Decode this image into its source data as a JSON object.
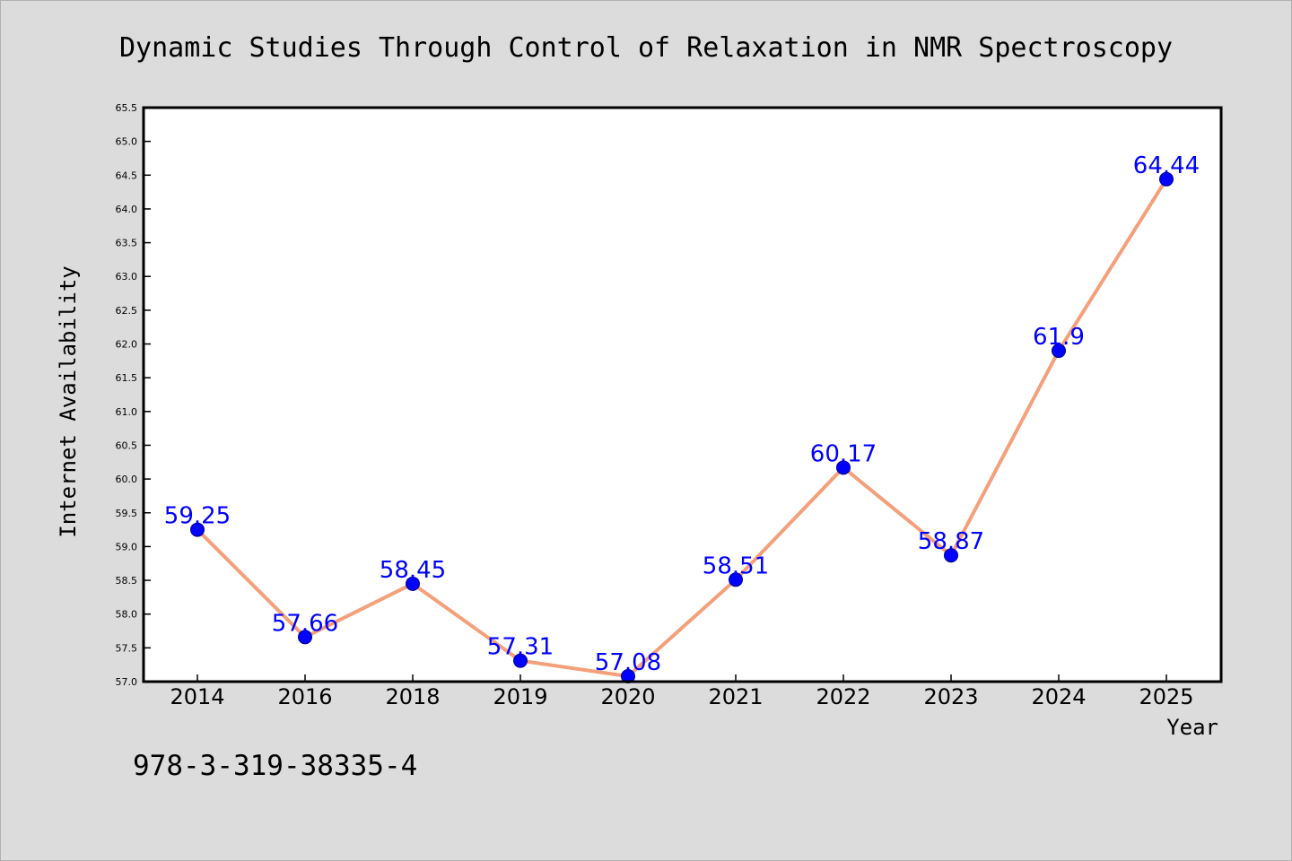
{
  "chart_data": {
    "type": "line",
    "title": "Dynamic Studies Through Control of Relaxation in NMR Spectroscopy",
    "xlabel": "Year",
    "ylabel": "Internet Availability",
    "categories": [
      "2014",
      "2016",
      "2018",
      "2019",
      "2020",
      "2021",
      "2022",
      "2023",
      "2024",
      "2025"
    ],
    "series": [
      {
        "values": [
          59.25,
          57.66,
          58.45,
          57.31,
          57.08,
          58.51,
          60.17,
          58.87,
          61.9,
          64.44
        ],
        "data_labels": [
          "59.25",
          "57.66",
          "58.45",
          "57.31",
          "57.08",
          "58.51",
          "60.17",
          "58.87",
          "61.9",
          "64.44"
        ]
      }
    ],
    "ylim": [
      57.0,
      65.5
    ],
    "yticks": [
      "57.0",
      "57.5",
      "58.0",
      "58.5",
      "59.0",
      "59.5",
      "60.0",
      "60.5",
      "61.0",
      "61.5",
      "62.0",
      "62.5",
      "63.0",
      "63.5",
      "64.0",
      "64.5",
      "65.0",
      "65.5"
    ],
    "grid": false,
    "legend": "none",
    "colors": {
      "background": "#dcdcdc",
      "plot_background": "#ffffff",
      "line": "#f4a07a",
      "marker": "#0000ff",
      "data_label": "#0000ff"
    }
  },
  "footer_text": "978-3-319-38335-4"
}
